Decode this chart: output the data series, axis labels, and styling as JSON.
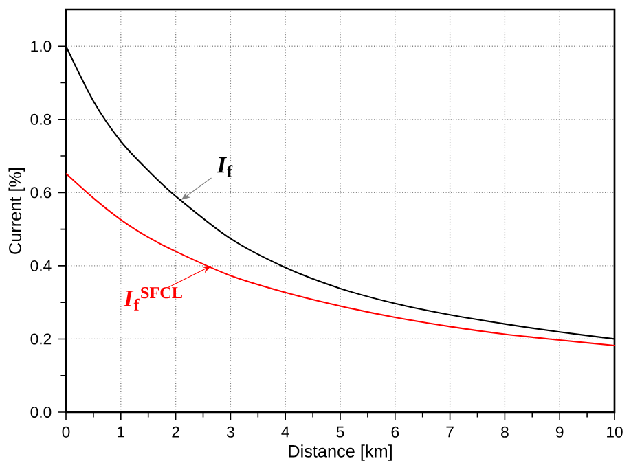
{
  "chart_data": {
    "type": "line",
    "xlabel": "Distance [km]",
    "ylabel": "Current [%]",
    "x": [
      0,
      0.5,
      1,
      1.5,
      2,
      3,
      4,
      5,
      6,
      7,
      8,
      9,
      10
    ],
    "series": [
      {
        "color": "#000000",
        "values": [
          1.0,
          0.85,
          0.74,
          0.66,
          0.59,
          0.474,
          0.395,
          0.338,
          0.297,
          0.266,
          0.241,
          0.219,
          0.2
        ]
      },
      {
        "color": "#ff0000",
        "values": [
          0.652,
          0.585,
          0.526,
          0.478,
          0.439,
          0.373,
          0.327,
          0.29,
          0.259,
          0.234,
          0.213,
          0.197,
          0.182
        ]
      }
    ],
    "annotations": [
      {
        "text": "*I*$_{f}$",
        "x": 2.1,
        "y": 0.58
      },
      {
        "text": "*I*$_{f}$$^{SFCL}$",
        "x": 2.65,
        "y": 0.4
      }
    ],
    "xlim": [
      0,
      10
    ],
    "xticks": [
      0,
      1,
      2,
      3,
      4,
      5,
      6,
      7,
      8,
      9,
      10
    ],
    "ylim": [
      0,
      1.1
    ],
    "yticks": [
      {
        "value": 0,
        "label": "0.0"
      },
      0.2,
      0.4,
      0.6,
      0.8,
      {
        "value": 1.0,
        "label": "1.0"
      }
    ],
    "grid": true,
    "marker": "none",
    "line_style": "solid"
  }
}
